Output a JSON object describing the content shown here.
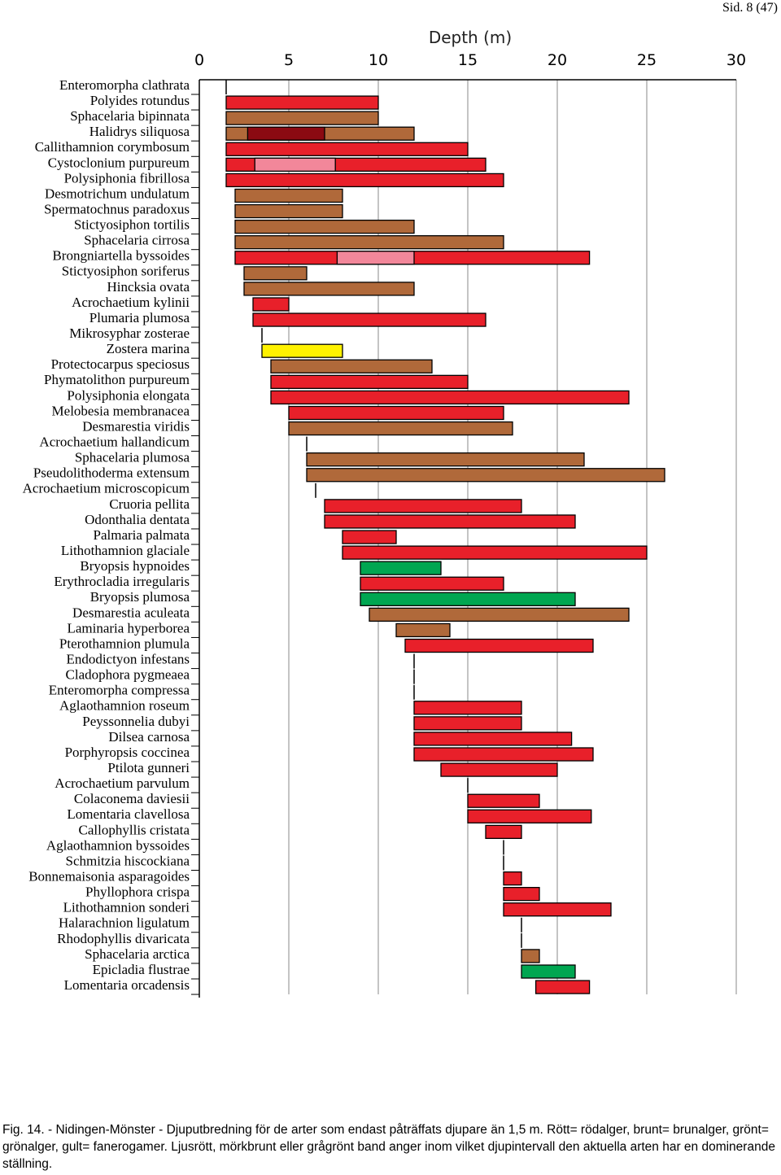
{
  "page_number": "Sid. 8 (47)",
  "caption": "Fig. 14. - Nidingen-Mönster - Djuputbredning för de arter som endast påträffats djupare än 1,5 m. Rött= rödalger, brunt= brunalger, grönt= grönalger, gult= fanerogamer. Ljusrött, mörkbrunt eller grågrönt band anger inom vilket djupintervall den aktuella arten har en dominerande ställning.",
  "chart_data": {
    "type": "range_bar",
    "x_label": "Depth (m)",
    "xlim": [
      0,
      30
    ],
    "xticks": [
      0,
      5,
      10,
      15,
      20,
      25,
      30
    ],
    "grid": true,
    "categories": [
      "Enteromorpha clathrata",
      "Polyides rotundus",
      "Sphacelaria bipinnata",
      "Halidrys siliquosa",
      "Callithamnion corymbosum",
      "Cystoclonium purpureum",
      "Polysiphonia fibrillosa",
      "Desmotrichum undulatum",
      "Spermatochnus paradoxus",
      "Stictyosiphon tortilis",
      "Sphacelaria cirrosa",
      "Brongniartella byssoides",
      "Stictyosiphon soriferus",
      "Hincksia ovata",
      "Acrochaetium kylinii",
      "Plumaria plumosa",
      "Mikrosyphar zosterae",
      "Zostera marina",
      "Protectocarpus speciosus",
      "Phymatolithon purpureum",
      "Polysiphonia elongata",
      "Melobesia membranacea",
      "Desmarestia viridis",
      "Acrochaetium hallandicum",
      "Sphacelaria plumosa",
      "Pseudolithoderma extensum",
      "Acrochaetium microscopicum",
      "Cruoria pellita",
      "Odonthalia dentata",
      "Palmaria palmata",
      "Lithothamnion glaciale",
      "Bryopsis hypnoides",
      "Erythrocladia irregularis",
      "Bryopsis plumosa",
      "Desmarestia aculeata",
      "Laminaria hyperborea",
      "Pterothamnion plumula",
      "Endodictyon infestans",
      "Cladophora pygmeaea",
      "Enteromorpha compressa",
      "Aglaothamnion roseum",
      "Peyssonnelia dubyi",
      "Dilsea carnosa",
      "Porphyropsis coccinea",
      "Ptilota gunneri",
      "Acrochaetium parvulum",
      "Colaconema daviesii",
      "Lomentaria clavellosa",
      "Callophyllis cristata",
      "Aglaothamnion byssoides",
      "Schmitzia hiscockiana",
      "Bonnemaisonia asparagoides",
      "Phyllophora crispa",
      "Lithothamnion sonderi",
      "Halarachnion ligulatum",
      "Rhodophyllis divaricata",
      "Sphacelaria arctica",
      "Epicladia flustrae",
      "Lomentaria orcadensis"
    ],
    "starts": [
      1.5,
      1.5,
      1.5,
      1.5,
      1.5,
      1.5,
      1.5,
      2,
      2,
      2,
      2,
      2,
      2.5,
      2.5,
      3,
      3,
      3.5,
      3.5,
      4,
      4,
      4,
      5,
      5,
      6,
      6,
      6,
      6.5,
      7,
      7,
      8,
      8,
      9,
      9,
      9,
      9.5,
      11,
      11.5,
      12,
      12,
      12,
      12,
      12,
      12,
      12,
      13.5,
      15,
      15,
      15,
      16,
      17,
      17,
      17,
      17,
      17,
      18,
      18,
      18,
      18,
      18.8
    ],
    "ends": [
      1.5,
      10,
      10,
      12,
      15,
      16,
      17,
      8,
      8,
      12,
      17,
      21.8,
      6,
      12,
      5,
      16,
      3.5,
      8,
      13,
      15,
      24,
      17,
      17.5,
      6,
      21.5,
      26,
      6.5,
      18,
      21,
      11,
      25,
      13.5,
      17,
      21,
      24,
      14,
      22,
      12,
      12,
      12,
      18,
      18,
      20.8,
      22,
      20,
      15,
      19,
      21.9,
      18,
      17,
      17,
      18,
      19,
      23,
      18,
      18,
      19,
      21,
      21.8
    ],
    "colors": [
      null,
      "#e8202a",
      "#b0693a",
      "#b0693a",
      "#e8202a",
      "#e8202a",
      "#e8202a",
      "#b0693a",
      "#b0693a",
      "#b0693a",
      "#b0693a",
      "#e8202a",
      "#b0693a",
      "#b0693a",
      "#e8202a",
      "#e8202a",
      null,
      "#fff200",
      "#b0693a",
      "#e8202a",
      "#e8202a",
      "#e8202a",
      "#b0693a",
      null,
      "#b0693a",
      "#b0693a",
      null,
      "#e8202a",
      "#e8202a",
      "#e8202a",
      "#e8202a",
      "#00a651",
      "#e8202a",
      "#00a651",
      "#b0693a",
      "#b0693a",
      "#e8202a",
      null,
      null,
      null,
      "#e8202a",
      "#e8202a",
      "#e8202a",
      "#e8202a",
      "#e8202a",
      null,
      "#e8202a",
      "#e8202a",
      "#e8202a",
      null,
      null,
      "#e8202a",
      "#e8202a",
      "#e8202a",
      null,
      null,
      "#b0693a",
      "#00a651",
      "#e8202a"
    ],
    "highlight_starts": [
      null,
      null,
      null,
      2.7,
      null,
      3.1,
      null,
      null,
      null,
      null,
      null,
      7.7,
      null,
      null,
      null,
      null,
      null,
      null,
      null,
      null,
      null,
      null,
      null,
      null,
      null,
      null,
      null,
      null,
      null,
      null,
      null,
      null,
      null,
      null,
      null,
      null,
      null,
      null,
      null,
      null,
      null,
      null,
      null,
      null,
      null,
      null,
      null,
      null,
      null,
      null,
      null,
      null,
      null,
      null,
      null,
      null,
      null,
      null,
      null
    ],
    "highlight_ends": [
      null,
      null,
      null,
      7,
      null,
      7.6,
      null,
      null,
      null,
      null,
      null,
      12,
      null,
      null,
      null,
      null,
      null,
      null,
      null,
      null,
      null,
      null,
      null,
      null,
      null,
      null,
      null,
      null,
      null,
      null,
      null,
      null,
      null,
      null,
      null,
      null,
      null,
      null,
      null,
      null,
      null,
      null,
      null,
      null,
      null,
      null,
      null,
      null,
      null,
      null,
      null,
      null,
      null,
      null,
      null,
      null,
      null,
      null,
      null
    ],
    "highlight_colors": [
      null,
      null,
      null,
      "#8b0a12",
      null,
      "#f2879a",
      null,
      null,
      null,
      null,
      null,
      "#f2879a",
      null,
      null,
      null,
      null,
      null,
      null,
      null,
      null,
      null,
      null,
      null,
      null,
      null,
      null,
      null,
      null,
      null,
      null,
      null,
      null,
      null,
      null,
      null,
      null,
      null,
      null,
      null,
      null,
      null,
      null,
      null,
      null,
      null,
      null,
      null,
      null,
      null,
      null,
      null,
      null,
      null,
      null,
      null,
      null,
      null,
      null,
      null
    ]
  }
}
